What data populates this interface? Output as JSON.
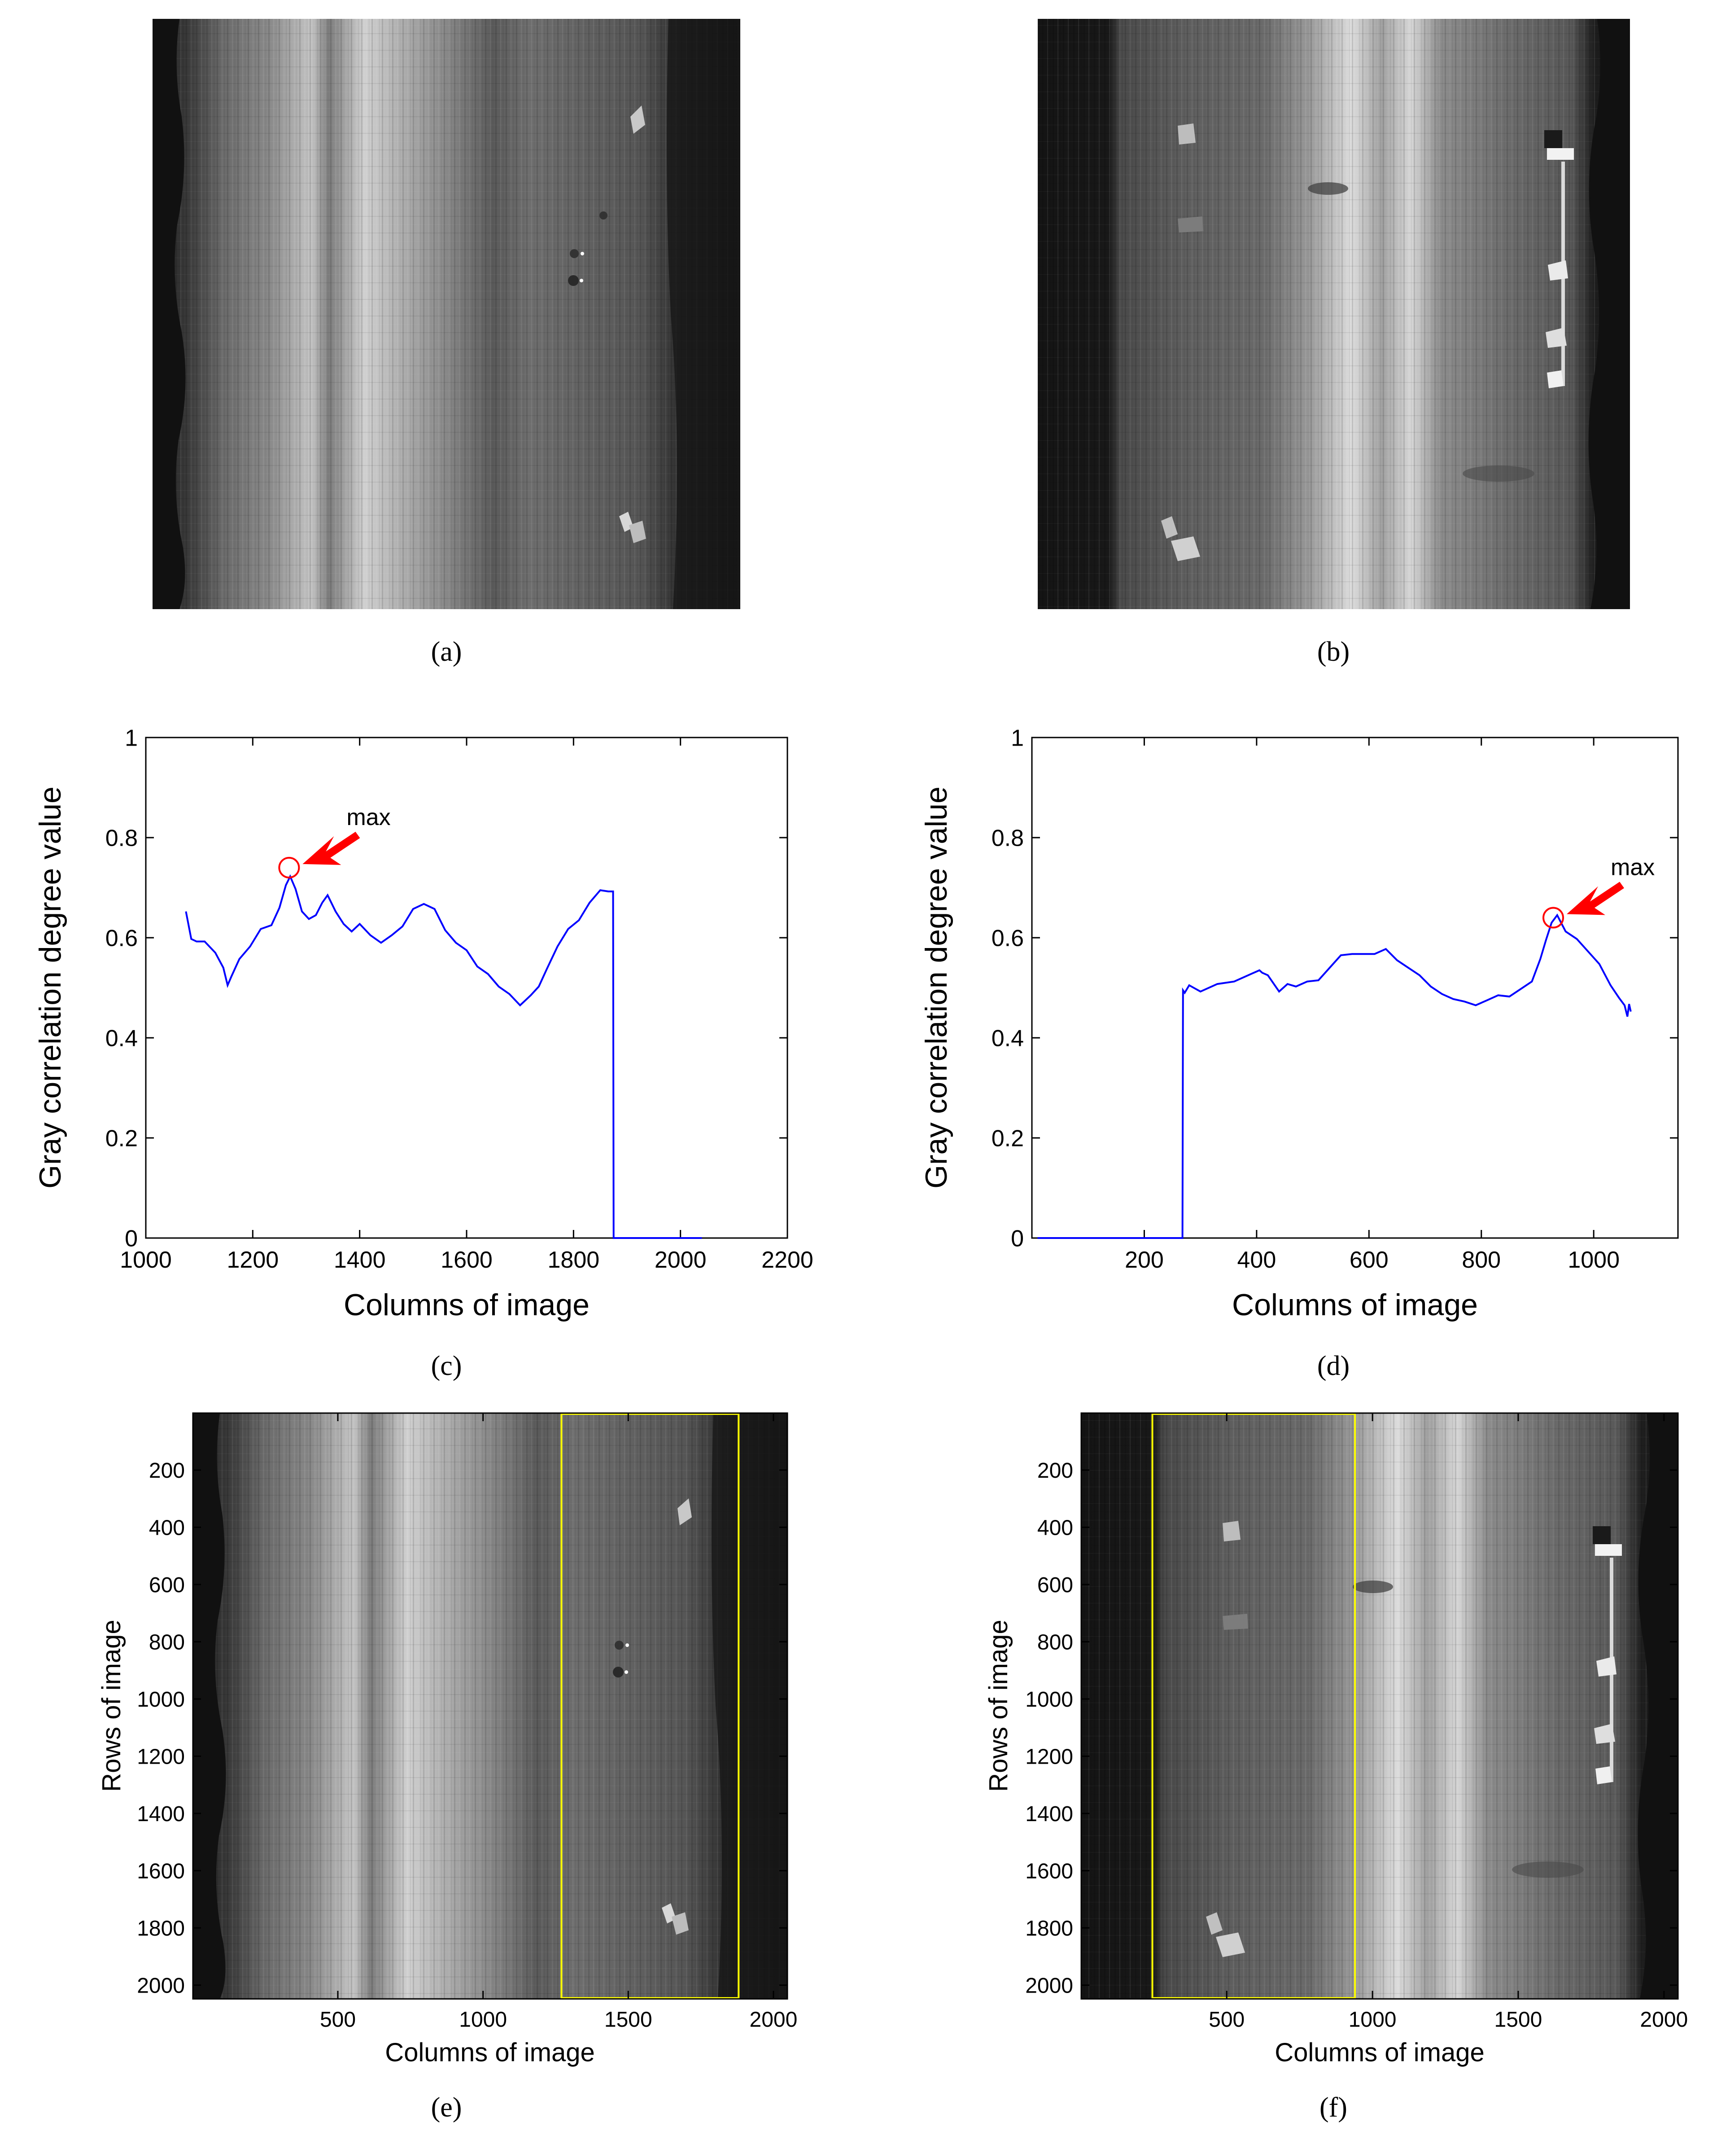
{
  "figure": {
    "colors": {
      "axis": "#000000",
      "curve": "#0000ff",
      "marker": "#ff0000",
      "annotation": "#ff0000",
      "roi_box": "#ffff00"
    }
  },
  "panels": {
    "a": {
      "caption": "(a)"
    },
    "b": {
      "caption": "(b)"
    },
    "c": {
      "caption": "(c)"
    },
    "d": {
      "caption": "(d)"
    },
    "e": {
      "caption": "(e)"
    },
    "f": {
      "caption": "(f)"
    }
  },
  "chart_data": [
    {
      "id": "c",
      "type": "line",
      "xlabel": "Columns of image",
      "ylabel": "Gray correlation degree value",
      "xlim": [
        1000,
        2200
      ],
      "ylim": [
        0,
        1
      ],
      "xticks": [
        1000,
        1200,
        1400,
        1600,
        1800,
        2000,
        2200
      ],
      "yticks": [
        0,
        0.2,
        0.4,
        0.6,
        0.8,
        1
      ],
      "yticklabels": [
        "0",
        "0.2",
        "0.4",
        "0.6",
        "0.8",
        "1"
      ],
      "series": [
        {
          "name": "gray correlation",
          "x": [
            1075,
            1085,
            1095,
            1110,
            1130,
            1145,
            1153,
            1160,
            1175,
            1195,
            1215,
            1235,
            1250,
            1262,
            1270,
            1280,
            1292,
            1305,
            1318,
            1330,
            1340,
            1355,
            1370,
            1385,
            1400,
            1420,
            1440,
            1460,
            1480,
            1500,
            1520,
            1540,
            1560,
            1580,
            1600,
            1620,
            1640,
            1660,
            1680,
            1700,
            1710,
            1720,
            1735,
            1750,
            1770,
            1790,
            1810,
            1830,
            1850,
            1865,
            1870,
            1874,
            1875,
            1878,
            1900,
            1950,
            2000,
            2040
          ],
          "y": [
            0.66,
            0.6,
            0.59,
            0.585,
            0.575,
            0.54,
            0.5,
            0.53,
            0.56,
            0.58,
            0.61,
            0.63,
            0.66,
            0.7,
            0.73,
            0.7,
            0.65,
            0.63,
            0.65,
            0.67,
            0.68,
            0.66,
            0.63,
            0.61,
            0.62,
            0.61,
            0.59,
            0.6,
            0.63,
            0.66,
            0.665,
            0.65,
            0.62,
            0.59,
            0.57,
            0.55,
            0.53,
            0.5,
            0.48,
            0.47,
            0.475,
            0.48,
            0.51,
            0.54,
            0.58,
            0.61,
            0.64,
            0.67,
            0.69,
            0.7,
            0.695,
            0.69,
            0,
            0,
            0,
            0,
            0,
            0
          ]
        }
      ],
      "max_point": {
        "x": 1268,
        "y": 0.74
      },
      "annotations": [
        {
          "text": "max"
        }
      ]
    },
    {
      "id": "d",
      "type": "line",
      "xlabel": "Columns of image",
      "ylabel": "Gray correlation degree value",
      "xlim": [
        0,
        1150
      ],
      "ylim": [
        0,
        1
      ],
      "xticks": [
        200,
        400,
        600,
        800,
        1000
      ],
      "yticks": [
        0,
        0.2,
        0.4,
        0.6,
        0.8,
        1
      ],
      "yticklabels": [
        "0",
        "0.2",
        "0.4",
        "0.6",
        "0.8",
        "1"
      ],
      "series": [
        {
          "name": "gray correlation",
          "x": [
            10,
            100,
            200,
            268,
            269,
            272,
            280,
            300,
            330,
            360,
            390,
            405,
            410,
            420,
            440,
            455,
            470,
            490,
            510,
            530,
            550,
            570,
            590,
            610,
            630,
            650,
            670,
            690,
            710,
            730,
            750,
            770,
            790,
            810,
            830,
            850,
            870,
            890,
            905,
            915,
            925,
            935,
            950,
            970,
            990,
            1010,
            1030,
            1045,
            1055,
            1060,
            1063,
            1066
          ],
          "y": [
            0,
            0,
            0,
            0,
            0.5,
            0.49,
            0.5,
            0.5,
            0.51,
            0.51,
            0.52,
            0.54,
            0.53,
            0.52,
            0.5,
            0.51,
            0.5,
            0.505,
            0.52,
            0.54,
            0.56,
            0.575,
            0.57,
            0.565,
            0.57,
            0.56,
            0.54,
            0.52,
            0.51,
            0.49,
            0.475,
            0.465,
            0.47,
            0.475,
            0.48,
            0.49,
            0.5,
            0.51,
            0.55,
            0.6,
            0.63,
            0.64,
            0.62,
            0.6,
            0.57,
            0.54,
            0.51,
            0.48,
            0.46,
            0.45,
            0.47,
            0.45
          ]
        }
      ],
      "max_point": {
        "x": 928,
        "y": 0.64
      },
      "annotations": [
        {
          "text": "max"
        }
      ]
    },
    {
      "id": "e",
      "type": "heatmap",
      "xlabel": "Columns of image",
      "ylabel": "Rows of image",
      "xlim": [
        1,
        2048
      ],
      "ylim": [
        2048,
        1
      ],
      "xticks": [
        500,
        1000,
        1500,
        2000
      ],
      "yticks": [
        200,
        400,
        600,
        800,
        1000,
        1200,
        1400,
        1600,
        1800,
        2000
      ],
      "roi_box": {
        "x0": 1270,
        "x1": 1880,
        "y0": 1,
        "y1": 2048
      }
    },
    {
      "id": "f",
      "type": "heatmap",
      "xlabel": "Columns of image",
      "ylabel": "Rows of image",
      "xlim": [
        1,
        2048
      ],
      "ylim": [
        2048,
        1
      ],
      "xticks": [
        500,
        1000,
        1500,
        2000
      ],
      "yticks": [
        200,
        400,
        600,
        800,
        1000,
        1200,
        1400,
        1600,
        1800,
        2000
      ],
      "roi_box": {
        "x0": 245,
        "x1": 940,
        "y0": 1,
        "y1": 2048
      }
    }
  ]
}
